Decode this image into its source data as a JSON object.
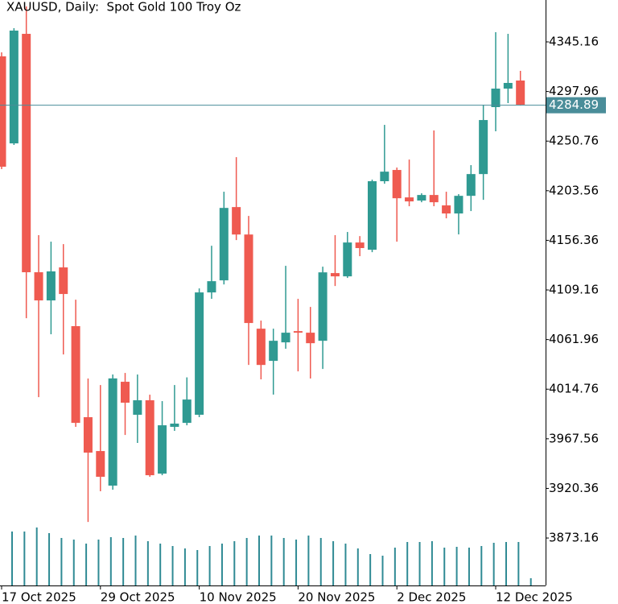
{
  "chart_data": {
    "type": "candlestick",
    "title": "XAUUSD, Daily:  Spot Gold 100 Troy Oz",
    "categories": [
      "17 Oct 2025",
      null,
      null,
      null,
      null,
      null,
      null,
      null,
      "29 Oct 2025",
      null,
      null,
      null,
      null,
      null,
      null,
      null,
      "10 Nov 2025",
      null,
      null,
      null,
      null,
      null,
      null,
      null,
      "20 Nov 2025",
      null,
      null,
      null,
      null,
      null,
      null,
      null,
      "2 Dec 2025",
      null,
      null,
      null,
      null,
      null,
      null,
      null,
      "12 Dec 2025",
      null,
      null
    ],
    "open": [
      4331.4,
      4248.6,
      4352.8,
      4126.0,
      4099.2,
      4130.6,
      4074.7,
      3988.1,
      3955.9,
      3923.0,
      4021.8,
      3990.4,
      4004.2,
      3934.4,
      3978.9,
      3982.7,
      3990.4,
      4106.8,
      4118.3,
      4188.0,
      4161.9,
      4072.3,
      4041.7,
      4059.3,
      4070.0,
      4068.5,
      4060.8,
      4125.2,
      4122.1,
      4154.3,
      4147.4,
      4212.6,
      4223.3,
      4197.2,
      4194.2,
      4199.5,
      4189.6,
      4181.9,
      4198.7,
      4219.4,
      4283.1,
      4300.7,
      4308.4
    ],
    "high": [
      4335.2,
      4358.2,
      4378.9,
      4161.3,
      4155.1,
      4152.8,
      4099.9,
      4024.9,
      4018.7,
      4028.7,
      4030.2,
      4028.7,
      4009.5,
      4003.4,
      4018.7,
      4026.0,
      4110.6,
      4151.2,
      4202.6,
      4235.5,
      4179.6,
      4080.0,
      4072.3,
      4132.1,
      4100.7,
      4093.0,
      4131.3,
      4161.3,
      4164.3,
      4160.4,
      4214.1,
      4266.2,
      4225.6,
      4233.2,
      4201.1,
      4260.9,
      4202.6,
      4200.3,
      4227.9,
      4285.4,
      4354.4,
      4352.8,
      4317.6
    ],
    "low": [
      4224.1,
      4247.1,
      4082.3,
      4007.2,
      4067.0,
      4047.8,
      3978.9,
      3888.4,
      3917.6,
      3919.1,
      3971.2,
      3963.6,
      3931.4,
      3932.9,
      3975.1,
      3980.4,
      3988.1,
      4100.7,
      4114.4,
      4156.6,
      4037.8,
      4024.1,
      4009.6,
      4053.2,
      4031.7,
      4024.9,
      4034.0,
      4112.9,
      4120.6,
      4141.3,
      4145.1,
      4210.2,
      4155.1,
      4188.8,
      4192.6,
      4188.8,
      4177.3,
      4162.0,
      4184.2,
      4194.9,
      4260.1,
      4286.9,
      4284.9
    ],
    "close": [
      4226.4,
      4355.9,
      4126.0,
      4099.2,
      4126.8,
      4105.3,
      3982.7,
      3954.4,
      3931.4,
      4025.0,
      4001.9,
      4004.2,
      3932.9,
      3980.4,
      3982.0,
      4004.9,
      4106.8,
      4117.5,
      4187.2,
      4161.9,
      4077.7,
      4037.8,
      4060.8,
      4068.5,
      4068.5,
      4058.5,
      4125.9,
      4122.1,
      4154.3,
      4149.0,
      4212.6,
      4221.7,
      4196.4,
      4193.4,
      4199.5,
      4192.6,
      4181.9,
      4198.7,
      4219.4,
      4270.8,
      4300.7,
      4306.1,
      4285.4
    ],
    "volume": [
      67,
      67,
      72,
      65,
      59,
      57,
      52,
      57,
      60,
      59,
      62,
      55,
      52,
      49,
      46,
      44,
      49,
      52,
      55,
      59,
      62,
      62,
      59,
      57,
      62,
      59,
      55,
      52,
      46,
      39,
      37,
      47,
      54,
      54,
      55,
      47,
      48,
      47,
      49,
      53,
      54,
      54,
      9
    ],
    "volume_lim": [
      0,
      100
    ],
    "up_color": "#2f9a92",
    "down_color": "#ef5a50",
    "volume_color": "#2f8a94",
    "ylim": [
      3828,
      4385
    ],
    "yticks": [
      3873.16,
      3920.36,
      3967.56,
      4014.76,
      4061.96,
      4109.16,
      4156.36,
      4203.56,
      4250.76,
      4297.96,
      4345.16
    ],
    "current_price": 4284.89,
    "current_color": "#4a8d99"
  }
}
